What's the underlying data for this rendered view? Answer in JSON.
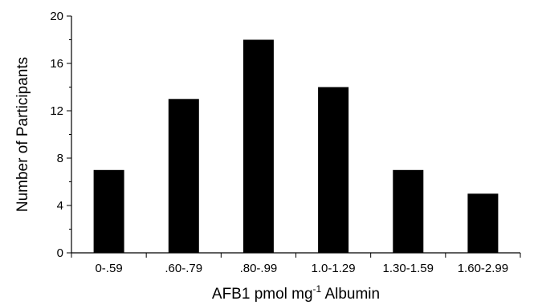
{
  "chart_data": {
    "type": "bar",
    "categories": [
      "0-.59",
      ".60-.79",
      ".80-.99",
      "1.0-1.29",
      "1.30-1.59",
      "1.60-2.99"
    ],
    "values": [
      7,
      13,
      18,
      14,
      7,
      5
    ],
    "title": "",
    "xlabel": {
      "prefix": "AFB1 pmol mg",
      "superscript": "-1",
      "suffix": " Albumin"
    },
    "ylabel": "Number of Participants",
    "ylim": [
      0,
      20
    ],
    "yticks": [
      "0",
      "4",
      "8",
      "12",
      "16",
      "20"
    ],
    "minor_tick_step": 2,
    "bar_color": "#000000",
    "grid": false,
    "legend": "none"
  }
}
